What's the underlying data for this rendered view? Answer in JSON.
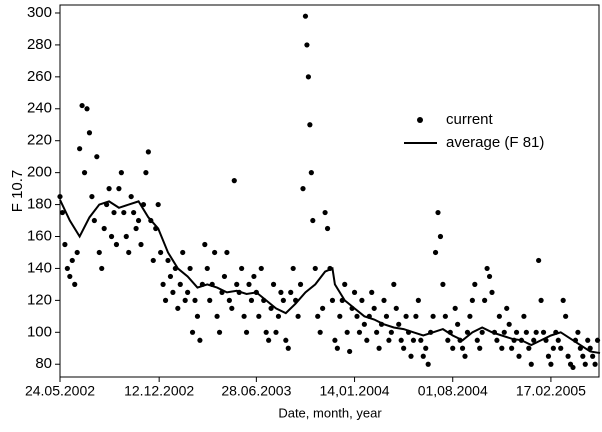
{
  "chart_data": {
    "type": "scatter",
    "ylabel": "F 10.7",
    "xlabel": "Date, month, year",
    "xlim": [
      0,
      1100
    ],
    "xticks": [
      {
        "value": 0,
        "label": "24.05.2002"
      },
      {
        "value": 202,
        "label": "12.12.2002"
      },
      {
        "value": 400,
        "label": "28.06.2003"
      },
      {
        "value": 600,
        "label": "14,01.2004"
      },
      {
        "value": 800,
        "label": "01,08.2004"
      },
      {
        "value": 1000,
        "label": "17.02.2005"
      }
    ],
    "ylim": [
      72,
      305
    ],
    "yticks": [
      80,
      100,
      120,
      140,
      160,
      180,
      200,
      220,
      240,
      260,
      280,
      300
    ],
    "series": [
      {
        "name": "current",
        "type": "scatter",
        "color": "#000000",
        "x": [
          0,
          5,
          10,
          15,
          20,
          25,
          30,
          35,
          40,
          45,
          50,
          55,
          60,
          65,
          70,
          75,
          80,
          85,
          90,
          95,
          100,
          105,
          110,
          115,
          120,
          125,
          130,
          135,
          140,
          145,
          150,
          155,
          160,
          165,
          170,
          175,
          180,
          185,
          190,
          195,
          200,
          205,
          210,
          215,
          220,
          225,
          230,
          235,
          240,
          245,
          250,
          255,
          260,
          265,
          270,
          275,
          280,
          285,
          290,
          295,
          300,
          305,
          310,
          315,
          320,
          325,
          330,
          335,
          340,
          345,
          350,
          355,
          360,
          365,
          370,
          375,
          380,
          385,
          390,
          395,
          400,
          405,
          410,
          415,
          420,
          425,
          430,
          435,
          440,
          445,
          450,
          455,
          460,
          465,
          470,
          475,
          480,
          485,
          490,
          495,
          500,
          503,
          506,
          509,
          512,
          515,
          520,
          525,
          530,
          535,
          540,
          545,
          550,
          555,
          560,
          565,
          570,
          575,
          580,
          585,
          590,
          595,
          600,
          605,
          610,
          615,
          620,
          625,
          630,
          635,
          640,
          645,
          650,
          655,
          660,
          665,
          670,
          675,
          680,
          685,
          690,
          695,
          700,
          705,
          710,
          715,
          720,
          725,
          730,
          735,
          740,
          745,
          750,
          755,
          760,
          765,
          770,
          775,
          780,
          785,
          790,
          795,
          800,
          805,
          810,
          815,
          820,
          825,
          830,
          835,
          840,
          845,
          850,
          855,
          860,
          865,
          870,
          875,
          880,
          885,
          890,
          895,
          900,
          905,
          910,
          915,
          920,
          925,
          930,
          935,
          940,
          945,
          950,
          955,
          960,
          965,
          970,
          975,
          980,
          985,
          990,
          995,
          1000,
          1005,
          1010,
          1015,
          1020,
          1025,
          1030,
          1035,
          1040,
          1045,
          1050,
          1055,
          1060,
          1065,
          1070,
          1075,
          1080,
          1085,
          1090,
          1095
        ],
        "values": [
          185,
          175,
          155,
          140,
          135,
          145,
          130,
          150,
          215,
          242,
          200,
          240,
          225,
          185,
          170,
          210,
          150,
          140,
          165,
          180,
          190,
          160,
          175,
          155,
          190,
          200,
          175,
          160,
          150,
          185,
          175,
          165,
          170,
          155,
          180,
          200,
          213,
          170,
          145,
          165,
          180,
          150,
          130,
          120,
          145,
          135,
          125,
          140,
          115,
          130,
          150,
          120,
          125,
          140,
          100,
          120,
          110,
          95,
          130,
          155,
          140,
          120,
          130,
          150,
          110,
          100,
          125,
          135,
          150,
          120,
          115,
          195,
          130,
          125,
          140,
          110,
          100,
          130,
          120,
          135,
          125,
          110,
          140,
          120,
          100,
          95,
          115,
          130,
          100,
          110,
          125,
          120,
          95,
          90,
          125,
          140,
          120,
          110,
          130,
          190,
          298,
          280,
          260,
          230,
          200,
          170,
          140,
          110,
          100,
          115,
          175,
          165,
          140,
          120,
          95,
          90,
          110,
          120,
          130,
          100,
          88,
          115,
          125,
          110,
          100,
          120,
          105,
          95,
          110,
          125,
          115,
          100,
          90,
          105,
          120,
          110,
          95,
          100,
          130,
          115,
          105,
          95,
          90,
          110,
          100,
          85,
          95,
          110,
          120,
          95,
          85,
          90,
          80,
          100,
          110,
          150,
          175,
          160,
          130,
          110,
          95,
          100,
          90,
          115,
          105,
          95,
          90,
          85,
          100,
          110,
          120,
          130,
          95,
          90,
          100,
          120,
          140,
          135,
          125,
          100,
          95,
          110,
          90,
          100,
          115,
          105,
          90,
          95,
          100,
          85,
          95,
          110,
          100,
          90,
          80,
          95,
          100,
          145,
          120,
          100,
          95,
          85,
          80,
          90,
          100,
          95,
          90,
          120,
          110,
          85,
          80,
          78,
          95,
          100,
          90,
          85,
          80,
          95,
          90,
          85,
          80,
          95
        ]
      },
      {
        "name": "average (F 81)",
        "type": "line",
        "color": "#000000",
        "x": [
          0,
          20,
          40,
          60,
          80,
          100,
          120,
          140,
          160,
          180,
          200,
          220,
          240,
          260,
          280,
          300,
          320,
          340,
          360,
          380,
          400,
          420,
          440,
          460,
          480,
          500,
          520,
          540,
          555,
          560,
          580,
          600,
          620,
          640,
          660,
          680,
          700,
          720,
          740,
          760,
          780,
          800,
          820,
          840,
          860,
          880,
          900,
          920,
          940,
          960,
          980,
          1000,
          1020,
          1040,
          1060,
          1080,
          1100
        ],
        "values": [
          183,
          170,
          160,
          172,
          180,
          182,
          178,
          180,
          182,
          172,
          165,
          150,
          140,
          135,
          128,
          130,
          128,
          125,
          126,
          124,
          125,
          120,
          115,
          112,
          118,
          125,
          130,
          138,
          140,
          130,
          120,
          115,
          110,
          108,
          105,
          103,
          102,
          100,
          98,
          100,
          102,
          98,
          95,
          100,
          103,
          100,
          98,
          96,
          95,
          92,
          95,
          98,
          100,
          96,
          92,
          88,
          87
        ]
      }
    ]
  }
}
